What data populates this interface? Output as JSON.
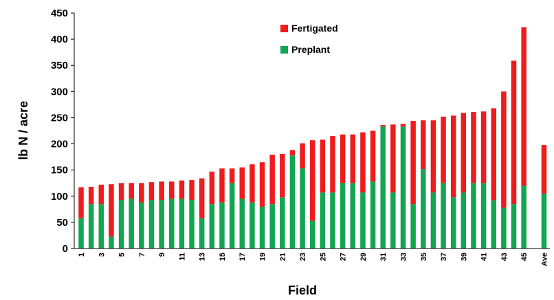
{
  "chart_data": {
    "type": "stacked_bar",
    "x_label": "Field",
    "y_label": "lb N / acre",
    "categories": [
      "1",
      null,
      "3",
      null,
      "5",
      null,
      "7",
      null,
      "9",
      null,
      "11",
      null,
      "13",
      null,
      "15",
      null,
      "17",
      null,
      "19",
      null,
      "21",
      null,
      "23",
      null,
      "25",
      null,
      "27",
      null,
      "29",
      null,
      "31",
      null,
      "33",
      null,
      "35",
      null,
      "37",
      null,
      "39",
      null,
      "41",
      null,
      "43",
      null,
      "45",
      "Ave"
    ],
    "series": [
      {
        "name": "Preplant",
        "color": "#13a552",
        "values": [
          58,
          85,
          85,
          23,
          93,
          95,
          88,
          93,
          93,
          95,
          95,
          93,
          58,
          85,
          88,
          125,
          95,
          88,
          80,
          85,
          98,
          178,
          153,
          53,
          107,
          107,
          125,
          125,
          107,
          128,
          233,
          107,
          233,
          85,
          152,
          107,
          125,
          98,
          107,
          125,
          125,
          92,
          78,
          85,
          120,
          105
        ]
      },
      {
        "name": "Fertigated",
        "color": "#ee1c1c",
        "values": [
          59,
          33,
          37,
          100,
          32,
          30,
          37,
          34,
          35,
          33,
          35,
          38,
          76,
          62,
          65,
          28,
          60,
          73,
          85,
          94,
          83,
          10,
          48,
          154,
          101,
          108,
          93,
          93,
          115,
          97,
          3,
          130,
          5,
          159,
          93,
          138,
          127,
          156,
          152,
          136,
          137,
          176,
          222,
          274,
          303,
          93
        ]
      }
    ],
    "ylim": [
      0,
      450
    ],
    "yticks": [
      0,
      50,
      100,
      150,
      200,
      250,
      300,
      350,
      400,
      450
    ],
    "legend": "top-center"
  }
}
